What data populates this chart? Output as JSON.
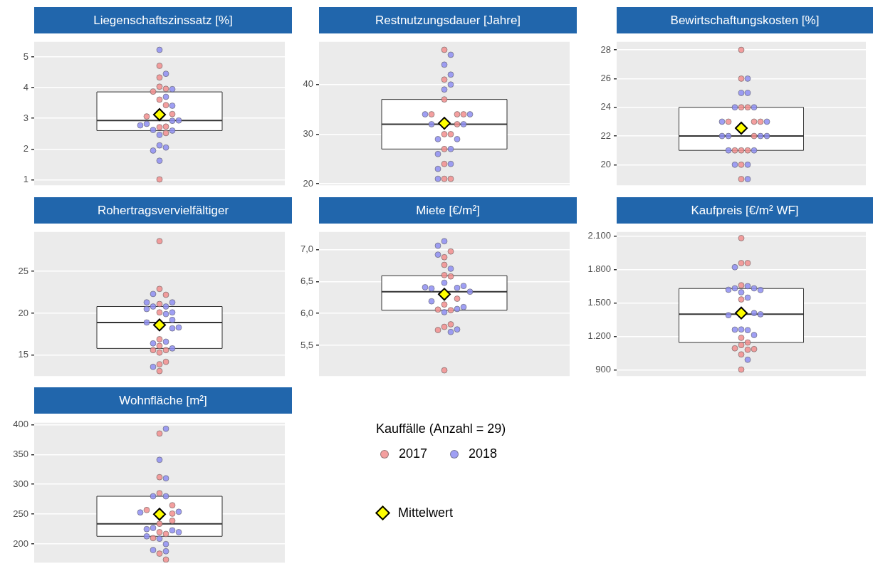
{
  "chart_data": [
    {
      "type": "box",
      "title": "Liegenschaftszinssatz [%]",
      "categories": [
        null
      ],
      "ylim": [
        0.82,
        5.49
      ],
      "yticks": [
        1,
        2,
        3,
        4,
        5
      ],
      "tick_labels": "y",
      "grid": "y",
      "legend": false,
      "boxes": [
        {
          "low": 2.6,
          "q1": 2.6,
          "median": 2.93,
          "q3": 3.86,
          "high": 3.86
        }
      ],
      "series": [
        {
          "type": "scatter",
          "marker": "circle",
          "color": "#f28e8e",
          "x": [
            null,
            null,
            null,
            null,
            null,
            null,
            null,
            null,
            null,
            null,
            null,
            null,
            null
          ],
          "values": [
            4.71,
            4.33,
            4.03,
            3.96,
            3.87,
            3.61,
            3.43,
            3.14,
            3.06,
            2.71,
            2.73,
            2.52,
            1.01
          ]
        },
        {
          "type": "scatter",
          "marker": "circle",
          "color": "#8e8ef2",
          "x": [
            null,
            null,
            null,
            null,
            null,
            null,
            null,
            null,
            null,
            null,
            null,
            null,
            null,
            null,
            null,
            null
          ],
          "values": [
            5.23,
            3.95,
            4.45,
            3.7,
            3.41,
            2.92,
            2.82,
            2.62,
            2.93,
            2.77,
            2.6,
            2.46,
            2.12,
            2.05,
            1.95,
            1.62
          ]
        },
        {
          "type": "scatter",
          "marker": "diamond",
          "color": "#ffff00",
          "x": [
            null
          ],
          "values": [
            3.12
          ]
        }
      ]
    },
    {
      "type": "box",
      "title": "Restnutzungsdauer [Jahre]",
      "categories": [
        null
      ],
      "ylim": [
        19.7,
        48.6
      ],
      "yticks": [
        20,
        30,
        40
      ],
      "tick_labels": "y",
      "grid": "y",
      "legend": false,
      "boxes": [
        {
          "low": 27,
          "q1": 27,
          "median": 32,
          "q3": 37,
          "high": 37
        }
      ],
      "series": [
        {
          "type": "scatter",
          "marker": "circle",
          "color": "#f28e8e",
          "x": [
            null,
            null,
            null,
            null,
            null,
            null,
            null,
            null,
            null,
            null,
            null,
            null,
            null
          ],
          "values": [
            47,
            41,
            37,
            34,
            34,
            34,
            32,
            30,
            30,
            27,
            24,
            21,
            21
          ]
        },
        {
          "type": "scatter",
          "marker": "circle",
          "color": "#8e8ef2",
          "x": [
            null,
            null,
            null,
            null,
            null,
            null,
            null,
            null,
            null,
            null,
            null,
            null,
            null,
            null,
            null,
            null
          ],
          "values": [
            46,
            44,
            42,
            40,
            39,
            34,
            34,
            32,
            32,
            29,
            29,
            27,
            26,
            24,
            23,
            21
          ]
        },
        {
          "type": "scatter",
          "marker": "diamond",
          "color": "#ffff00",
          "x": [
            null
          ],
          "values": [
            32.2
          ]
        }
      ]
    },
    {
      "type": "box",
      "title": "Bewirtschaftungskosten [%]",
      "categories": [
        null
      ],
      "ylim": [
        18.57,
        28.56
      ],
      "yticks": [
        20,
        22,
        24,
        26,
        28
      ],
      "tick_labels": "y",
      "grid": "y",
      "legend": false,
      "boxes": [
        {
          "low": 21,
          "q1": 21,
          "median": 22,
          "q3": 24,
          "high": 24
        }
      ],
      "series": [
        {
          "type": "scatter",
          "marker": "circle",
          "color": "#f28e8e",
          "x": [
            null,
            null,
            null,
            null,
            null,
            null,
            null,
            null,
            null,
            null,
            null,
            null,
            null
          ],
          "values": [
            28,
            26,
            24,
            24,
            23,
            23,
            23,
            22,
            21,
            21,
            21,
            20,
            19
          ]
        },
        {
          "type": "scatter",
          "marker": "circle",
          "color": "#8e8ef2",
          "x": [
            null,
            null,
            null,
            null,
            null,
            null,
            null,
            null,
            null,
            null,
            null,
            null,
            null,
            null,
            null,
            null
          ],
          "values": [
            26,
            25,
            25,
            24,
            24,
            23,
            23,
            22,
            22,
            22,
            22,
            21,
            21,
            20,
            20,
            19
          ]
        },
        {
          "type": "scatter",
          "marker": "diamond",
          "color": "#ffff00",
          "x": [
            null
          ],
          "values": [
            22.55
          ]
        }
      ]
    },
    {
      "type": "box",
      "title": "Rohertragsvervielfältiger",
      "categories": [
        null
      ],
      "ylim": [
        12.5,
        29.7
      ],
      "yticks": [
        15,
        20,
        25
      ],
      "tick_labels": "y",
      "grid": "y",
      "legend": false,
      "boxes": [
        {
          "low": 15.8,
          "q1": 15.8,
          "median": 18.9,
          "q3": 20.8,
          "high": 20.8
        }
      ],
      "series": [
        {
          "type": "scatter",
          "marker": "circle",
          "color": "#f28e8e",
          "x": [
            null,
            null,
            null,
            null,
            null,
            null,
            null,
            null,
            null,
            null,
            null,
            null,
            null
          ],
          "values": [
            28.6,
            22.9,
            22.2,
            21.1,
            20.1,
            16.9,
            16.1,
            15.3,
            15.6,
            15.6,
            13.9,
            14.2,
            13.1
          ]
        },
        {
          "type": "scatter",
          "marker": "circle",
          "color": "#8e8ef2",
          "x": [
            null,
            null,
            null,
            null,
            null,
            null,
            null,
            null,
            null,
            null,
            null,
            null,
            null,
            null,
            null,
            null
          ],
          "values": [
            20.8,
            20.8,
            20.1,
            19.9,
            21.3,
            21.3,
            20.5,
            22.3,
            19.2,
            18.9,
            18.2,
            18.3,
            16.6,
            16.4,
            15.8,
            13.6
          ]
        },
        {
          "type": "scatter",
          "marker": "diamond",
          "color": "#ffff00",
          "x": [
            null
          ],
          "values": [
            18.6
          ]
        }
      ]
    },
    {
      "type": "box",
      "title": "Miete [€/m²]",
      "categories": [
        null
      ],
      "ylim": [
        5.02,
        7.275
      ],
      "yticks": [
        {
          "value": 5.5,
          "label": "5,5"
        },
        {
          "value": 6,
          "label": "6,0"
        },
        {
          "value": 6.5,
          "label": "6,5"
        },
        {
          "value": 7,
          "label": "7,0"
        }
      ],
      "tick_labels": "y",
      "grid": "y",
      "legend": false,
      "boxes": [
        {
          "low": 6.05,
          "q1": 6.05,
          "median": 6.34,
          "q3": 6.59,
          "high": 6.59
        }
      ],
      "series": [
        {
          "type": "scatter",
          "marker": "circle",
          "color": "#f28e8e",
          "x": [
            null,
            null,
            null,
            null,
            null,
            null,
            null,
            null,
            null,
            null,
            null,
            null,
            null
          ],
          "values": [
            6.88,
            6.97,
            6.76,
            6.6,
            6.58,
            6.23,
            6.14,
            6.05,
            6.06,
            5.79,
            5.83,
            5.74,
            5.11
          ]
        },
        {
          "type": "scatter",
          "marker": "circle",
          "color": "#8e8ef2",
          "x": [
            null,
            null,
            null,
            null,
            null,
            null,
            null,
            null,
            null,
            null,
            null,
            null,
            null,
            null,
            null,
            null
          ],
          "values": [
            7.13,
            7.06,
            6.92,
            6.7,
            6.48,
            6.4,
            6.39,
            6.43,
            6.41,
            6.34,
            6.19,
            6.07,
            6.1,
            6.02,
            5.75,
            5.71
          ]
        },
        {
          "type": "scatter",
          "marker": "diamond",
          "color": "#ffff00",
          "x": [
            null
          ],
          "values": [
            6.3
          ]
        }
      ]
    },
    {
      "type": "box",
      "title": "Kaufpreis [€/m² WF]",
      "categories": [
        null
      ],
      "ylim": [
        846,
        2138
      ],
      "yticks": [
        {
          "value": 900,
          "label": "900"
        },
        {
          "value": 1200,
          "label": "1.200"
        },
        {
          "value": 1500,
          "label": "1.500"
        },
        {
          "value": 1800,
          "label": "1.800"
        },
        {
          "value": 2100,
          "label": "2.100"
        }
      ],
      "tick_labels": "y",
      "grid": "y",
      "legend": false,
      "boxes": [
        {
          "low": 1147,
          "q1": 1147,
          "median": 1401,
          "q3": 1631,
          "high": 1631
        }
      ],
      "series": [
        {
          "type": "scatter",
          "marker": "circle",
          "color": "#f28e8e",
          "x": [
            null,
            null,
            null,
            null,
            null,
            null,
            null,
            null,
            null,
            null,
            null,
            null,
            null
          ],
          "values": [
            2083,
            1859,
            1859,
            1660,
            1533,
            1189,
            1147,
            1124,
            1095,
            1082,
            1088,
            1040,
            904
          ]
        },
        {
          "type": "scatter",
          "marker": "circle",
          "color": "#8e8ef2",
          "x": [
            null,
            null,
            null,
            null,
            null,
            null,
            null,
            null,
            null,
            null,
            null,
            null,
            null,
            null,
            null,
            null
          ],
          "values": [
            1822,
            1652,
            1633,
            1633,
            1620,
            1618,
            1597,
            1549,
            1411,
            1392,
            1400,
            1264,
            1258,
            1262,
            1214,
            992
          ]
        },
        {
          "type": "scatter",
          "marker": "diamond",
          "color": "#ffff00",
          "x": [
            null
          ],
          "values": [
            1411
          ]
        }
      ]
    },
    {
      "type": "box",
      "title": "Wohnfläche [m²]",
      "categories": [
        null
      ],
      "ylim": [
        169,
        403
      ],
      "yticks": [
        200,
        250,
        300,
        350,
        400
      ],
      "tick_labels": "y",
      "grid": "y",
      "legend": "right",
      "legend_title": "Kauffälle (Anzahl = 29)",
      "boxes": [
        {
          "low": 213,
          "q1": 213,
          "median": 234,
          "q3": 280,
          "high": 280
        }
      ],
      "series": [
        {
          "name": "2017",
          "type": "scatter",
          "marker": "circle",
          "color": "#f28e8e",
          "x": [
            null,
            null,
            null,
            null,
            null,
            null,
            null,
            null,
            null,
            null,
            null,
            null,
            null
          ],
          "values": [
            385,
            312,
            285,
            265,
            257,
            251,
            239,
            234,
            220,
            217,
            210,
            184,
            174
          ]
        },
        {
          "name": "2018",
          "type": "scatter",
          "marker": "circle",
          "color": "#8e8ef2",
          "x": [
            null,
            null,
            null,
            null,
            null,
            null,
            null,
            null,
            null,
            null,
            null,
            null,
            null,
            null,
            null,
            null
          ],
          "values": [
            393,
            341,
            310,
            280,
            280,
            254,
            253,
            227,
            223,
            225,
            220,
            213,
            209,
            200,
            190,
            188
          ]
        },
        {
          "name": "Mittelwert",
          "type": "scatter",
          "marker": "diamond",
          "color": "#ffff00",
          "x": [
            null
          ],
          "values": [
            250
          ]
        }
      ]
    }
  ]
}
